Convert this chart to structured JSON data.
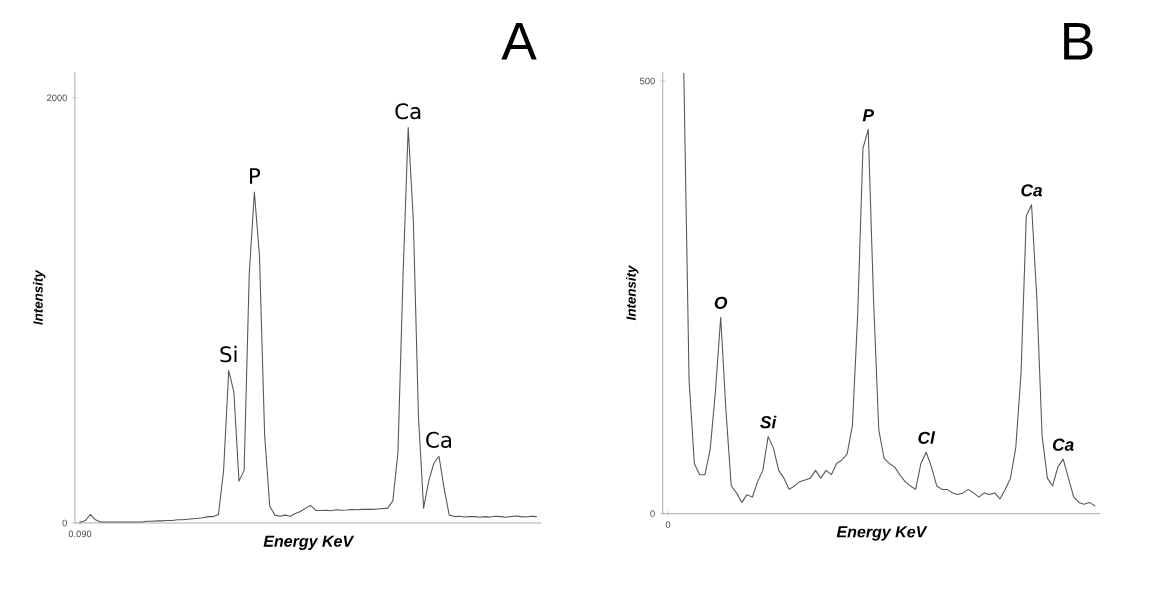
{
  "chart_data": [
    {
      "type": "line",
      "title": "A",
      "xlabel": "Energy KeV",
      "ylabel": "Intensity",
      "color": "#555555",
      "categories": [
        "0.090",
        null,
        null,
        null,
        null,
        null,
        null,
        null,
        null,
        null,
        null,
        null,
        null,
        null,
        null,
        null,
        null,
        null,
        null,
        null,
        null,
        null,
        null,
        null,
        null,
        null,
        null,
        null,
        null,
        null,
        null,
        null,
        null,
        null,
        null,
        null,
        null,
        null,
        null,
        null,
        null,
        null,
        null,
        null,
        null,
        null,
        null,
        null,
        null,
        null,
        null,
        null,
        null,
        null,
        null,
        null,
        null,
        null,
        null,
        null,
        null,
        null,
        null,
        null,
        null,
        null,
        null,
        null,
        null,
        null,
        null,
        null,
        null,
        null,
        null,
        null,
        null,
        null,
        null,
        null,
        null,
        null,
        null,
        null,
        null,
        null,
        null,
        null,
        null,
        null
      ],
      "values": [
        3,
        10,
        40,
        15,
        5,
        5,
        5,
        5,
        5,
        5,
        5,
        5,
        5,
        8,
        8,
        10,
        10,
        12,
        12,
        15,
        15,
        18,
        20,
        22,
        25,
        30,
        30,
        40,
        247,
        717,
        617,
        197,
        247,
        1171,
        1557,
        1255,
        415,
        79,
        37,
        32,
        37,
        32,
        45,
        54,
        70,
        82,
        59,
        59,
        60,
        58,
        62,
        60,
        61,
        63,
        62,
        64,
        65,
        64,
        66,
        68,
        70,
        104,
        331,
        1171,
        1860,
        1423,
        499,
        70,
        197,
        281,
        314,
        163,
        37,
        30,
        32,
        28,
        30,
        30,
        27,
        30,
        28,
        32,
        30,
        27,
        30,
        33,
        30,
        28,
        32,
        30
      ],
      "ylim": [
        0,
        2120
      ],
      "yticks": [
        0,
        2000
      ],
      "annotations": [
        {
          "text": "Si",
          "y": 717
        },
        {
          "text": "P",
          "y": 1557
        },
        {
          "text": "Ca",
          "y": 1860
        },
        {
          "text": "Ca",
          "y": 314
        }
      ]
    },
    {
      "type": "line",
      "title": "B",
      "xlabel": "Energy KeV",
      "ylabel": "Intensity",
      "color": "#555555",
      "categories": [
        "0",
        null,
        null,
        null,
        null,
        null,
        null,
        null,
        null,
        null,
        null,
        null,
        null,
        null,
        null,
        null,
        null,
        null,
        null,
        null,
        null,
        null,
        null,
        null,
        null,
        null,
        null,
        null,
        null,
        null,
        null,
        null,
        null,
        null,
        null,
        null,
        null,
        null,
        null,
        null,
        null,
        null,
        null,
        null,
        null,
        null,
        null,
        null,
        null,
        null,
        null,
        null,
        null,
        null,
        null,
        null,
        null,
        null,
        null,
        null,
        null,
        null,
        null,
        null,
        null,
        null,
        null,
        null,
        null,
        null,
        null,
        null,
        null,
        null,
        null,
        null,
        null,
        null,
        null,
        null,
        null,
        null
      ],
      "values": [
        null,
        null,
        null,
        509,
        154,
        58,
        45,
        45,
        74,
        141,
        227,
        119,
        32,
        24,
        13,
        22,
        19,
        37,
        50,
        89,
        76,
        50,
        41,
        28,
        32,
        37,
        39,
        41,
        50,
        41,
        50,
        45,
        58,
        62,
        69,
        102,
        230,
        422,
        444,
        249,
        97,
        64,
        58,
        54,
        45,
        37,
        32,
        28,
        58,
        71,
        54,
        32,
        28,
        28,
        24,
        22,
        24,
        28,
        24,
        19,
        24,
        22,
        24,
        17,
        28,
        41,
        76,
        162,
        344,
        357,
        249,
        90,
        41,
        32,
        54,
        63,
        41,
        19,
        13,
        11,
        13,
        9
      ],
      "ylim": [
        0,
        510
      ],
      "yticks": [
        0,
        500
      ],
      "annotations": [
        {
          "text": "O",
          "y": 227
        },
        {
          "text": "Si",
          "y": 89
        },
        {
          "text": "P",
          "y": 444
        },
        {
          "text": "Cl",
          "y": 71
        },
        {
          "text": "Ca",
          "y": 357
        },
        {
          "text": "Ca",
          "y": 63
        }
      ]
    }
  ]
}
